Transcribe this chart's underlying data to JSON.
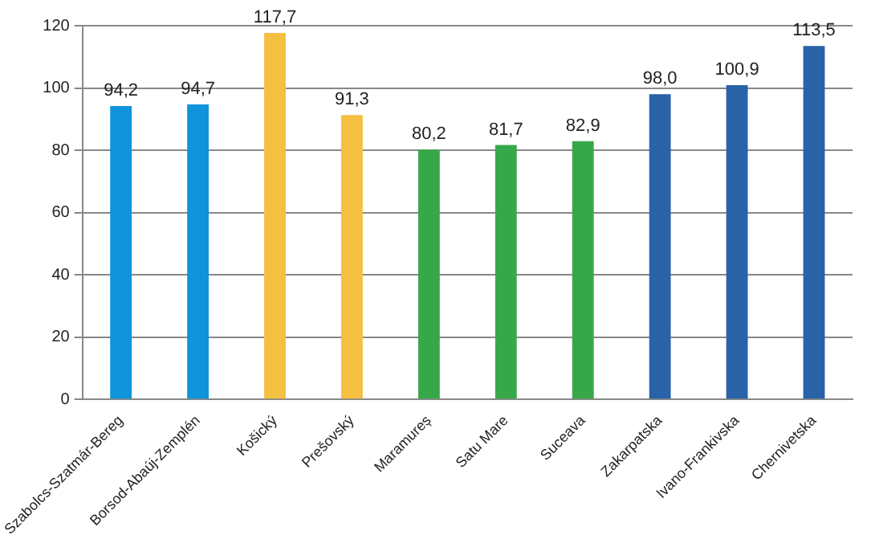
{
  "chart_data": {
    "type": "bar",
    "categories": [
      "Szabolcs-Szatmár-Bereg",
      "Borsod-Abaúj-Zemplén",
      "Košický",
      "Prešovský",
      "Maramureș",
      "Satu Mare",
      "Suceava",
      "Zakarpatska",
      "Ivano-Frankivska",
      "Chernivetska"
    ],
    "values": [
      94.2,
      94.7,
      117.7,
      91.3,
      80.2,
      81.7,
      82.9,
      98.0,
      100.9,
      113.5
    ],
    "colors": [
      "#0f94dc",
      "#0f94dc",
      "#f5bf42",
      "#f5bf42",
      "#37a84a",
      "#37a84a",
      "#37a84a",
      "#2a62a8",
      "#2a62a8",
      "#2a62a8"
    ],
    "value_labels": [
      "94,2",
      "94,7",
      "117,7",
      "91,3",
      "80,2",
      "81,7",
      "82,9",
      "98,0",
      "100,9",
      "113,5"
    ],
    "ylim": [
      0,
      120
    ],
    "yticks": [
      0,
      20,
      40,
      60,
      80,
      100,
      120
    ],
    "grid": "y",
    "legend": false
  }
}
